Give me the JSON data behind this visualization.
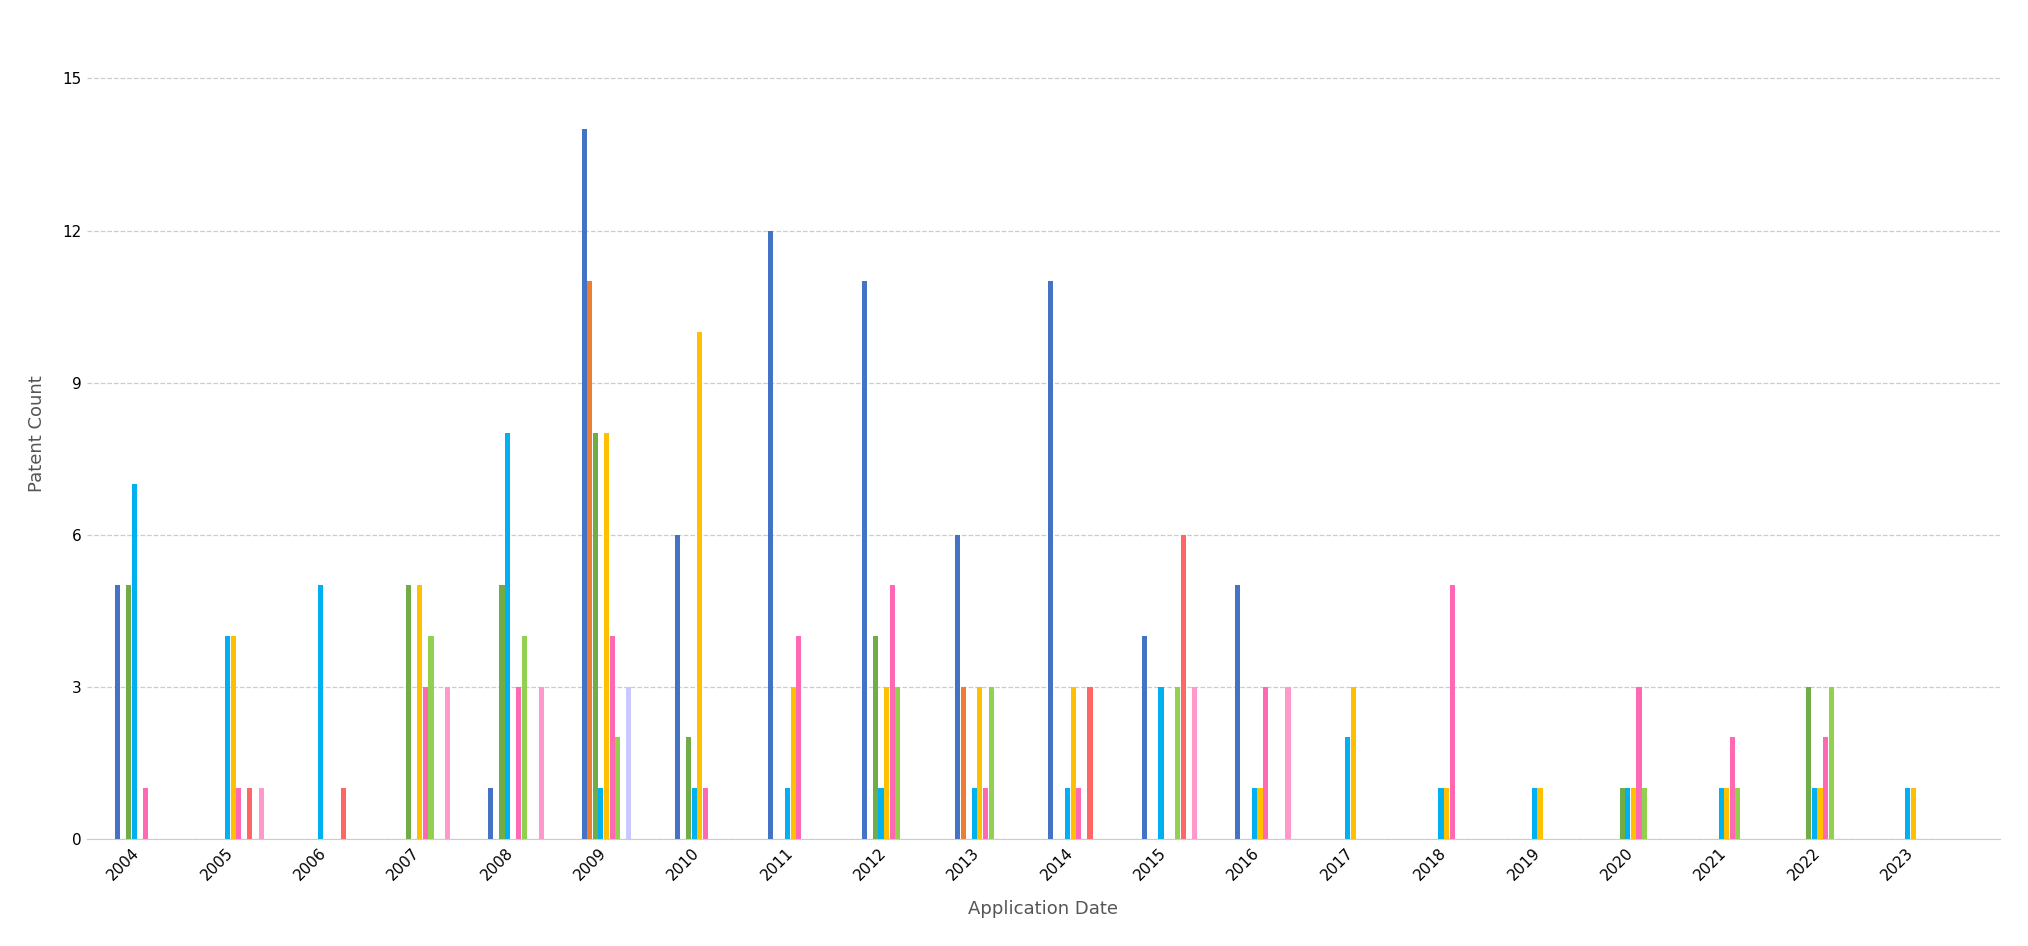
{
  "xlabel": "Application Date",
  "ylabel": "Patent Count",
  "ylim": [
    0,
    16
  ],
  "yticks": [
    0,
    3,
    6,
    9,
    12,
    15
  ],
  "series_colors": [
    "#4472c4",
    "#ed7d31",
    "#70ad47",
    "#00b0f0",
    "#ffc000",
    "#ff69b4",
    "#92d050",
    "#ff6666",
    "#c9c9ff",
    "#ff99cc"
  ],
  "years": [
    2004,
    2005,
    2006,
    2007,
    2008,
    2009,
    2010,
    2011,
    2012,
    2013,
    2014,
    2015,
    2016,
    2017,
    2018,
    2019,
    2020,
    2021,
    2022,
    2023
  ],
  "series_data": [
    [
      5,
      0,
      0,
      0,
      1,
      14,
      6,
      12,
      11,
      6,
      11,
      4,
      5,
      0,
      0,
      0,
      0,
      0,
      0,
      0
    ],
    [
      0,
      0,
      0,
      0,
      0,
      11,
      0,
      0,
      0,
      3,
      0,
      0,
      0,
      0,
      0,
      0,
      0,
      0,
      0,
      0
    ],
    [
      5,
      0,
      0,
      5,
      5,
      8,
      2,
      0,
      4,
      0,
      0,
      0,
      0,
      0,
      0,
      0,
      1,
      0,
      3,
      0
    ],
    [
      7,
      4,
      5,
      0,
      8,
      1,
      1,
      1,
      1,
      1,
      1,
      3,
      1,
      2,
      1,
      1,
      1,
      1,
      1,
      1
    ],
    [
      0,
      4,
      0,
      5,
      0,
      8,
      10,
      3,
      3,
      3,
      3,
      0,
      1,
      3,
      1,
      1,
      1,
      1,
      1,
      1
    ],
    [
      1,
      1,
      0,
      3,
      3,
      4,
      1,
      4,
      5,
      1,
      1,
      0,
      3,
      0,
      5,
      0,
      3,
      2,
      2,
      0
    ],
    [
      0,
      0,
      0,
      4,
      4,
      2,
      0,
      0,
      3,
      3,
      0,
      3,
      0,
      0,
      0,
      0,
      1,
      1,
      3,
      0
    ],
    [
      0,
      1,
      1,
      0,
      0,
      0,
      0,
      0,
      0,
      0,
      3,
      6,
      0,
      0,
      0,
      0,
      0,
      0,
      0,
      0
    ],
    [
      0,
      0,
      0,
      0,
      0,
      3,
      0,
      0,
      0,
      0,
      0,
      0,
      0,
      0,
      0,
      0,
      0,
      0,
      0,
      0
    ],
    [
      0,
      1,
      0,
      3,
      3,
      0,
      0,
      0,
      0,
      0,
      0,
      3,
      3,
      0,
      0,
      0,
      0,
      0,
      0,
      0
    ]
  ],
  "bar_width": 0.06,
  "fig_width": 20.28,
  "fig_height": 9.46,
  "xlim_left": 2003.4,
  "xlim_right": 2023.9,
  "xtick_rotation": 45
}
